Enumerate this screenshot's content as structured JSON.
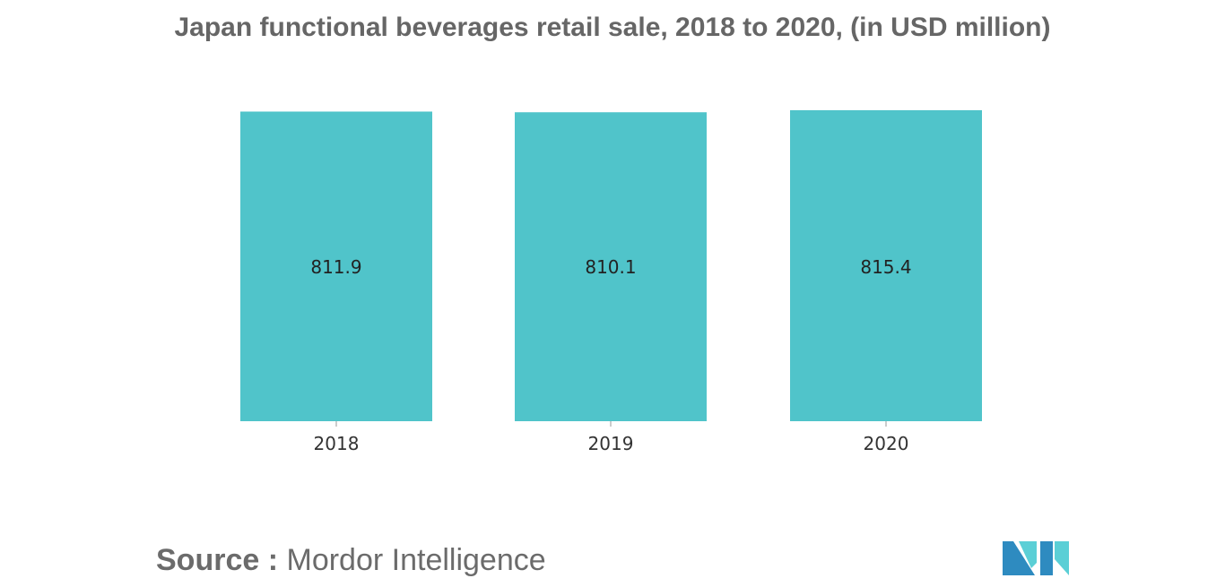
{
  "chart_data": {
    "type": "bar",
    "title": "Japan functional beverages retail sale, 2018 to 2020, (in USD million)",
    "categories": [
      "2018",
      "2019",
      "2020"
    ],
    "values": [
      811.9,
      810.1,
      815.4
    ],
    "value_labels": [
      "811.9",
      "810.1",
      "815.4"
    ],
    "xlabel": "",
    "ylabel": "",
    "y_axis_visible": false,
    "grid": false,
    "bar_color": "#50C4CA"
  },
  "footer": {
    "source_prefix": "Source :",
    "source_name": "Mordor Intelligence"
  },
  "logo": {
    "icon": "mordor-intelligence-logo",
    "colors": [
      "#2E8BC0",
      "#5BCFD6"
    ]
  }
}
